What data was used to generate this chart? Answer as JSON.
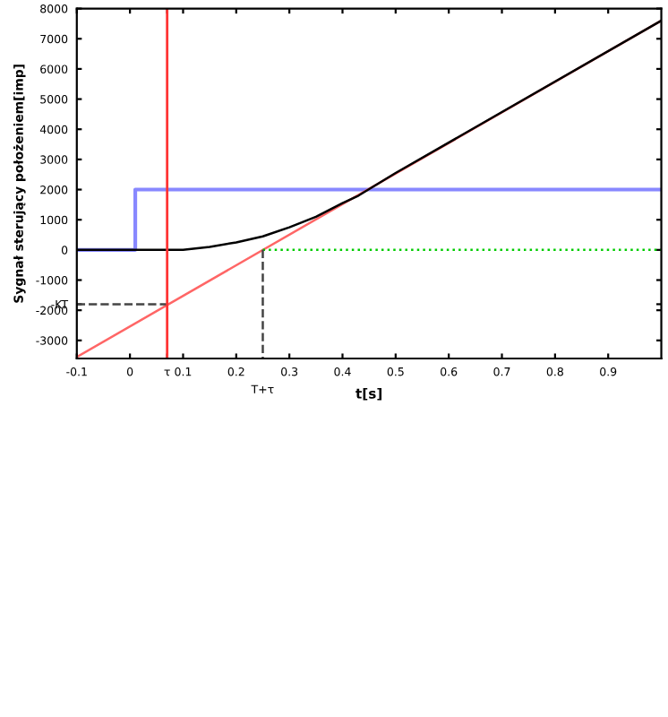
{
  "chart_data": {
    "type": "line",
    "xlabel": "t[s]",
    "ylabel": "Sygnał sterujący położeniem[imp]",
    "xlim": [
      -0.1,
      1.0
    ],
    "ylim": [
      -3600,
      8000
    ],
    "xticks": [
      -0.1,
      0,
      {
        "value": 0.07,
        "label": "τ"
      },
      0.1,
      0.2,
      0.3,
      0.4,
      0.5,
      0.6,
      0.7,
      0.8,
      0.9
    ],
    "yticks": [
      -3000,
      -2000,
      {
        "value": -1800,
        "label": "-KT"
      },
      -1000,
      0,
      1000,
      2000,
      3000,
      4000,
      5000,
      6000,
      7000,
      8000
    ],
    "series": [
      {
        "type": "step",
        "color": "#8888ff",
        "x": [
          -0.1,
          0.01,
          1.0
        ],
        "values": [
          0,
          2000,
          2000
        ]
      },
      {
        "color": "#ff6666",
        "x": [
          -0.1,
          1.0
        ],
        "values": [
          -3550,
          7600
        ]
      },
      {
        "color": "#000000",
        "x": [
          -0.1,
          0,
          0.07,
          0.1,
          0.15,
          0.2,
          0.25,
          0.3,
          0.35,
          0.4,
          0.43,
          0.5,
          1.0
        ],
        "values": [
          0,
          0,
          0,
          0,
          100,
          250,
          450,
          750,
          1100,
          1550,
          1800,
          2550,
          7600
        ]
      },
      {
        "color": "#00cc00",
        "line_style": "dotted",
        "x": [
          0.25,
          1.0
        ],
        "values": [
          0,
          0
        ]
      },
      {
        "color": "#444444",
        "line_style": "dashed",
        "x": [
          -0.1,
          0.07
        ],
        "values": [
          -1800,
          -1800
        ]
      },
      {
        "color": "#444444",
        "line_style": "dashed",
        "x": [
          0.25,
          0.25
        ],
        "values": [
          0,
          -3600
        ]
      }
    ],
    "ref_lines": [
      {
        "axis": "x",
        "value": 0.07,
        "color": "#ff3333"
      }
    ],
    "annotations": [
      "T+τ"
    ],
    "grid": false
  }
}
